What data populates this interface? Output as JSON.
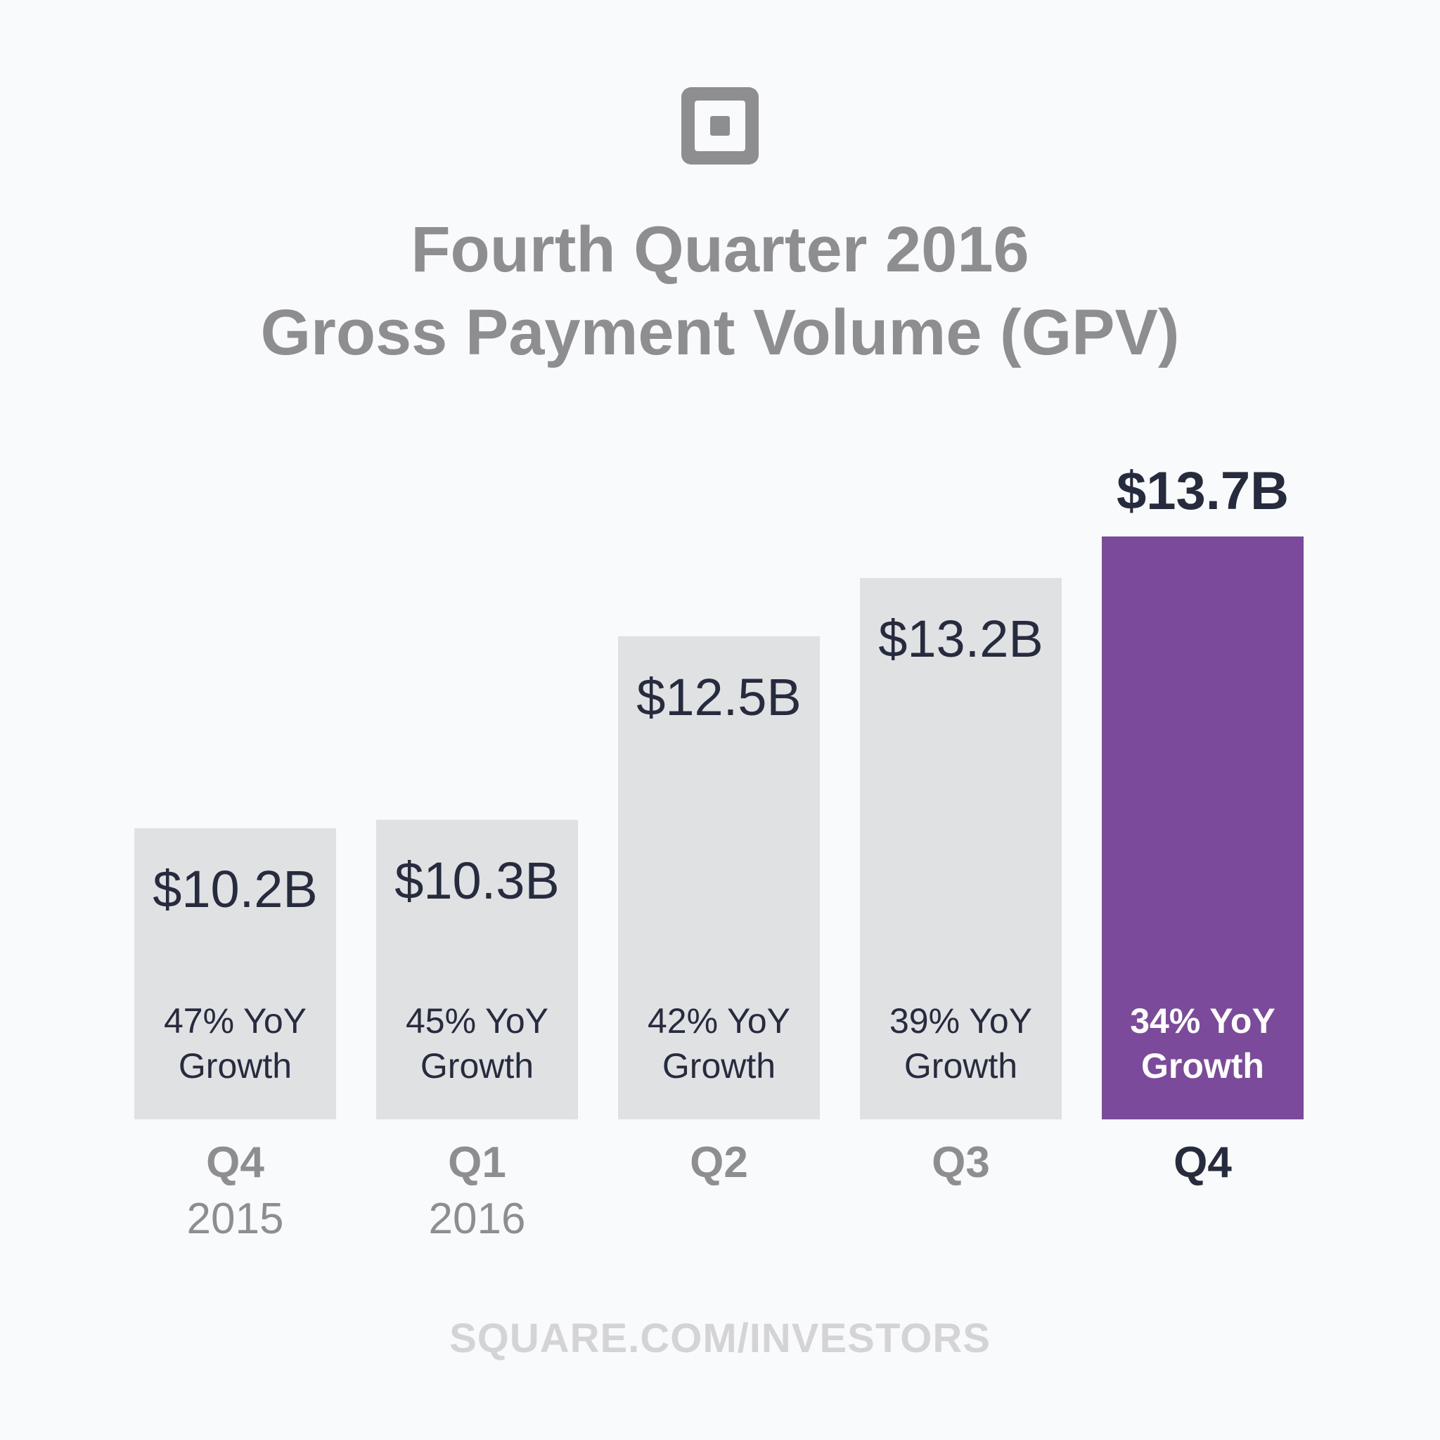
{
  "title_line1": "Fourth Quarter 2016",
  "title_line2": "Gross Payment Volume (GPV)",
  "footer": "SQUARE.COM/INVESTORS",
  "colors": {
    "bar": "#e0e1e3",
    "highlight": "#7c4a9a",
    "text_dark": "#262b3e",
    "text_gray": "#8e8e91"
  },
  "chart_data": {
    "type": "bar",
    "categories": [
      "Q4 2015",
      "Q1 2016",
      "Q2",
      "Q3",
      "Q4"
    ],
    "values": [
      10.2,
      10.3,
      12.5,
      13.2,
      13.7
    ],
    "unit": "$B",
    "highlight_index": 4,
    "bars": [
      {
        "quarter": "Q4",
        "year": "2015",
        "value_label": "$10.2B",
        "growth_line1": "47% YoY",
        "growth_line2": "Growth"
      },
      {
        "quarter": "Q1",
        "year": "2016",
        "value_label": "$10.3B",
        "growth_line1": "45% YoY",
        "growth_line2": "Growth"
      },
      {
        "quarter": "Q2",
        "year": "",
        "value_label": "$12.5B",
        "growth_line1": "42% YoY",
        "growth_line2": "Growth"
      },
      {
        "quarter": "Q3",
        "year": "",
        "value_label": "$13.2B",
        "growth_line1": "39% YoY",
        "growth_line2": "Growth"
      },
      {
        "quarter": "Q4",
        "year": "",
        "value_label": "$13.7B",
        "growth_line1": "34% YoY",
        "growth_line2": "Growth"
      }
    ],
    "title": "Fourth Quarter 2016 Gross Payment Volume (GPV)",
    "xlabel": "",
    "ylabel": "",
    "ylim": [
      0,
      13.7
    ]
  }
}
